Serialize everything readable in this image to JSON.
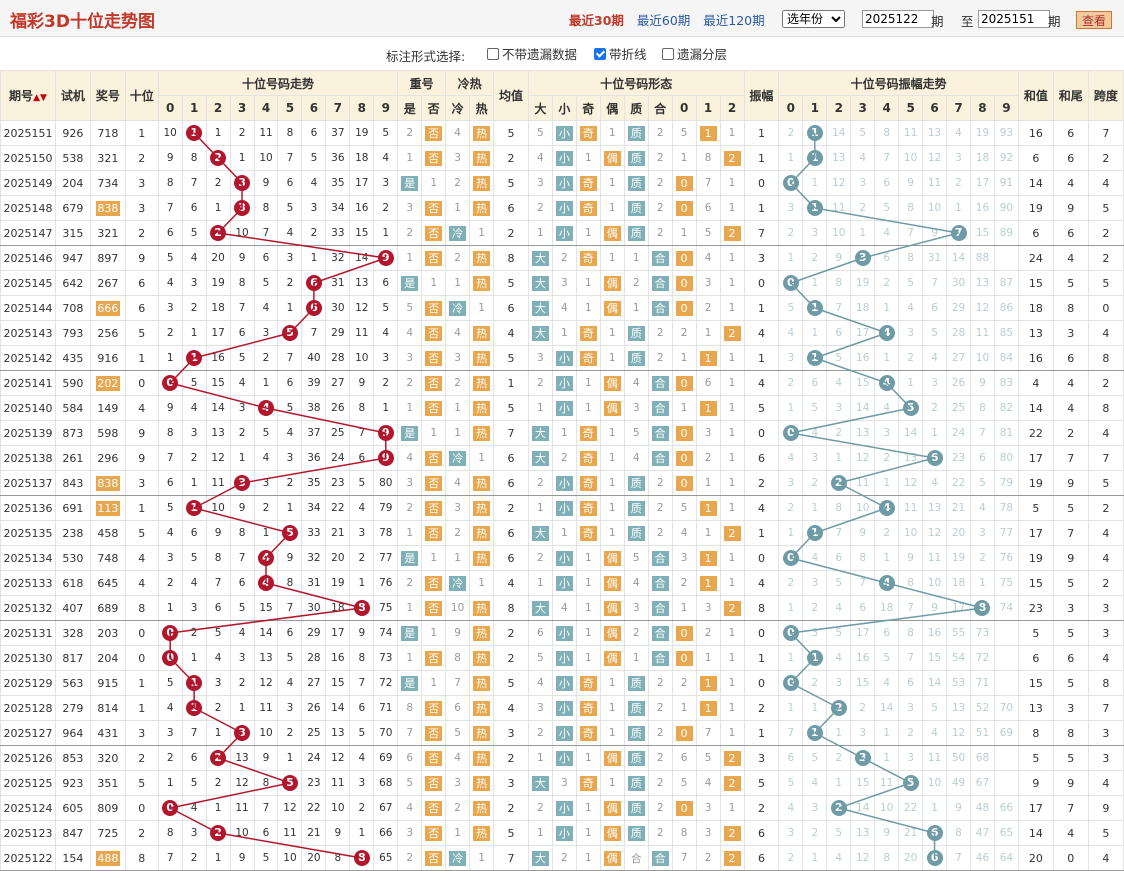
{
  "header": {
    "title": "福彩3D十位走势图",
    "periods": [
      "最近30期",
      "最近60期",
      "最近120期"
    ],
    "year_select": "选年份",
    "from": "2025122",
    "qi": "期",
    "to_label": "至",
    "to": "2025151",
    "view_button": "查看"
  },
  "options": {
    "label": "标注形式选择:",
    "items": [
      {
        "label": "不带遗漏数据",
        "checked": false
      },
      {
        "label": "带折线",
        "checked": true
      },
      {
        "label": "遗漏分层",
        "checked": false
      }
    ]
  },
  "columns": {
    "period": "期号",
    "trial": "试机",
    "prize": "奖号",
    "ten": "十位",
    "trend": "十位号码走势",
    "repeat": "重号",
    "coldhot": "冷热",
    "avg": "均值",
    "form": "十位号码形态",
    "amp": "振幅",
    "amp_trend": "十位号码振幅走势",
    "sum": "和值",
    "tail": "和尾",
    "span": "跨度"
  },
  "sub_columns": {
    "digits": [
      "0",
      "1",
      "2",
      "3",
      "4",
      "5",
      "6",
      "7",
      "8",
      "9"
    ],
    "repeat": [
      "是",
      "否"
    ],
    "coldhot": [
      "冷",
      "热"
    ],
    "form": [
      "大",
      "小",
      "奇",
      "偶",
      "质",
      "合",
      "0",
      "1",
      "2"
    ]
  },
  "colors": {
    "red_ball": "#b2162d",
    "teal_ball": "#6e9ba6",
    "orange": "#e8a74e",
    "teal_box": "#7fb0b8"
  },
  "rows": [
    {
      "p": "2025151",
      "t": "926",
      "j": "718",
      "s": 1,
      "m": [
        "10",
        "",
        "1",
        "2",
        "11",
        "8",
        "6",
        "37",
        "19",
        "5"
      ],
      "rep": "2",
      "co": "4",
      "a": "5",
      "big": "5",
      "oe": "奇",
      "pr": "质",
      "r": "1",
      "r0": "5",
      "r1": "2",
      "am": "1",
      "amiss": [
        "2",
        "",
        "14",
        "5",
        "8",
        "11",
        "13",
        "4",
        "19",
        "93"
      ],
      "sum": "16",
      "tail": "6",
      "span": "7"
    },
    {
      "p": "2025150",
      "t": "538",
      "j": "321",
      "s": 2,
      "m": [
        "9",
        "8",
        "",
        "1",
        "10",
        "7",
        "5",
        "36",
        "18",
        "4"
      ],
      "rep": "1",
      "co": "3",
      "a": "2",
      "big": "4",
      "oe": "偶",
      "pr": "质",
      "r": "2",
      "r0": "1",
      "r1": "8",
      "am": "1",
      "amiss": [
        "1",
        "",
        "13",
        "4",
        "7",
        "10",
        "12",
        "3",
        "18",
        "92"
      ],
      "sum": "6",
      "tail": "6",
      "span": "2"
    },
    {
      "p": "2025149",
      "t": "204",
      "j": "734",
      "s": 3,
      "m": [
        "8",
        "7",
        "2",
        "",
        "9",
        "6",
        "4",
        "35",
        "17",
        "3"
      ],
      "rep": "是",
      "co": "2",
      "a": "5",
      "big": "3",
      "oe": "奇",
      "pr": "质",
      "r": "0",
      "r0": "",
      "r1": "7",
      "am": "0",
      "amiss": [
        "",
        "1",
        "12",
        "3",
        "6",
        "9",
        "11",
        "2",
        "17",
        "91"
      ],
      "sum": "14",
      "tail": "4",
      "span": "4"
    },
    {
      "p": "2025148",
      "t": "679",
      "j": "838",
      "s": 3,
      "m": [
        "7",
        "6",
        "1",
        "",
        "8",
        "5",
        "3",
        "34",
        "16",
        "2"
      ],
      "rep": "3",
      "co": "1",
      "a": "6",
      "big": "2",
      "oe": "奇",
      "pr": "质",
      "r": "0",
      "r0": "",
      "r1": "6",
      "am": "1",
      "amiss": [
        "3",
        "",
        "11",
        "2",
        "5",
        "8",
        "10",
        "1",
        "16",
        "90"
      ],
      "sum": "19",
      "tail": "9",
      "span": "5"
    },
    {
      "p": "2025147",
      "t": "315",
      "j": "321",
      "s": 2,
      "m": [
        "6",
        "5",
        "",
        "10",
        "7",
        "4",
        "2",
        "33",
        "15",
        "1"
      ],
      "rep": "2",
      "co": "冷",
      "a": "2",
      "big": "1",
      "oe": "偶",
      "pr": "质",
      "r": "2",
      "r0": "1",
      "r1": "5",
      "am": "7",
      "amiss": [
        "2",
        "3",
        "10",
        "1",
        "4",
        "7",
        "9",
        "",
        "15",
        "89"
      ],
      "sum": "6",
      "tail": "6",
      "span": "2"
    },
    {
      "p": "2025146",
      "t": "947",
      "j": "897",
      "s": 9,
      "m": [
        "5",
        "4",
        "20",
        "9",
        "6",
        "3",
        "1",
        "32",
        "14",
        ""
      ],
      "rep": "1",
      "co": "2",
      "a": "8",
      "big": "大",
      "oe": "奇",
      "pr": "1",
      "r": "0",
      "r0": "",
      "r1": "4",
      "am": "3",
      "amiss": [
        "1",
        "2",
        "9",
        "",
        "6",
        "8",
        "31",
        "14",
        "88",
        ""
      ],
      "sum": "24",
      "tail": "4",
      "span": "2"
    },
    {
      "p": "2025145",
      "t": "642",
      "j": "267",
      "s": 6,
      "m": [
        "4",
        "3",
        "19",
        "8",
        "5",
        "2",
        "",
        "31",
        "13",
        "6"
      ],
      "rep": "是",
      "co": "1",
      "a": "5",
      "big": "大",
      "oe": "偶",
      "pr": "2",
      "r": "0",
      "r0": "",
      "r1": "3",
      "am": "0",
      "amiss": [
        "",
        "1",
        "8",
        "19",
        "2",
        "5",
        "7",
        "30",
        "13",
        "87"
      ],
      "sum": "15",
      "tail": "5",
      "span": "5"
    },
    {
      "p": "2025144",
      "t": "708",
      "j": "666",
      "s": 6,
      "m": [
        "3",
        "2",
        "18",
        "7",
        "4",
        "1",
        "",
        "30",
        "12",
        "5"
      ],
      "rep": "5",
      "co": "冷",
      "a": "6",
      "big": "大",
      "oe": "偶",
      "pr": "1",
      "r": "0",
      "r0": "",
      "r1": "2",
      "am": "1",
      "amiss": [
        "5",
        "",
        "7",
        "18",
        "1",
        "4",
        "6",
        "29",
        "12",
        "86"
      ],
      "sum": "18",
      "tail": "8",
      "span": "0"
    },
    {
      "p": "2025143",
      "t": "793",
      "j": "256",
      "s": 5,
      "m": [
        "2",
        "1",
        "17",
        "6",
        "3",
        "",
        "7",
        "29",
        "11",
        "4"
      ],
      "rep": "4",
      "co": "4",
      "a": "4",
      "big": "大",
      "oe": "奇",
      "pr": "质",
      "r": "2",
      "r0": "2",
      "r1": "1",
      "am": "4",
      "amiss": [
        "4",
        "1",
        "6",
        "17",
        "",
        "3",
        "5",
        "28",
        "11",
        "85"
      ],
      "sum": "13",
      "tail": "3",
      "span": "4"
    },
    {
      "p": "2025142",
      "t": "435",
      "j": "916",
      "s": 1,
      "m": [
        "1",
        "",
        "16",
        "5",
        "2",
        "7",
        "40",
        "28",
        "10",
        "3"
      ],
      "rep": "3",
      "co": "3",
      "a": "5",
      "big": "3",
      "oe": "奇",
      "pr": "质",
      "r": "1",
      "r0": "1",
      "r1": "",
      "am": "1",
      "amiss": [
        "3",
        "",
        "5",
        "16",
        "1",
        "2",
        "4",
        "27",
        "10",
        "84"
      ],
      "sum": "16",
      "tail": "6",
      "span": "8"
    },
    {
      "p": "2025141",
      "t": "590",
      "j": "202",
      "s": 0,
      "m": [
        "",
        "5",
        "15",
        "4",
        "1",
        "6",
        "39",
        "27",
        "9",
        "2"
      ],
      "rep": "2",
      "co": "2",
      "a": "1",
      "big": "2",
      "oe": "偶",
      "pr": "4",
      "r": "0",
      "r0": "",
      "r1": "6",
      "am": "4",
      "amiss": [
        "2",
        "6",
        "4",
        "15",
        "",
        "1",
        "3",
        "26",
        "9",
        "83"
      ],
      "sum": "4",
      "tail": "4",
      "span": "2"
    },
    {
      "p": "2025140",
      "t": "584",
      "j": "149",
      "s": 4,
      "m": [
        "9",
        "4",
        "14",
        "3",
        "",
        "5",
        "38",
        "26",
        "8",
        "1"
      ],
      "rep": "1",
      "co": "1",
      "a": "5",
      "big": "1",
      "oe": "偶",
      "pr": "3",
      "r": "1",
      "r0": "1",
      "r1": "",
      "am": "5",
      "amiss": [
        "1",
        "5",
        "3",
        "14",
        "4",
        "",
        "2",
        "25",
        "8",
        "82"
      ],
      "sum": "14",
      "tail": "4",
      "span": "8"
    },
    {
      "p": "2025139",
      "t": "873",
      "j": "598",
      "s": 9,
      "m": [
        "8",
        "3",
        "13",
        "2",
        "5",
        "4",
        "37",
        "25",
        "7",
        ""
      ],
      "rep": "是",
      "co": "1",
      "a": "7",
      "big": "大",
      "oe": "奇",
      "pr": "5",
      "r": "0",
      "r0": "",
      "r1": "3",
      "am": "0",
      "amiss": [
        "",
        "4",
        "2",
        "13",
        "3",
        "14",
        "1",
        "24",
        "7",
        "81"
      ],
      "sum": "22",
      "tail": "2",
      "span": "4"
    },
    {
      "p": "2025138",
      "t": "261",
      "j": "296",
      "s": 9,
      "m": [
        "7",
        "2",
        "12",
        "1",
        "4",
        "3",
        "36",
        "24",
        "6",
        ""
      ],
      "rep": "4",
      "co": "冷",
      "a": "6",
      "big": "大",
      "oe": "奇",
      "pr": "4",
      "r": "0",
      "r0": "",
      "r1": "2",
      "am": "6",
      "amiss": [
        "4",
        "3",
        "1",
        "12",
        "2",
        "13",
        "",
        "23",
        "6",
        "80"
      ],
      "sum": "17",
      "tail": "7",
      "span": "7"
    },
    {
      "p": "2025137",
      "t": "843",
      "j": "838",
      "s": 3,
      "m": [
        "6",
        "1",
        "11",
        "",
        "3",
        "2",
        "35",
        "23",
        "5",
        "80"
      ],
      "rep": "3",
      "co": "4",
      "a": "6",
      "big": "2",
      "oe": "奇",
      "pr": "质",
      "r": "0",
      "r0": "",
      "r1": "1",
      "am": "2",
      "amiss": [
        "3",
        "2",
        "",
        "11",
        "1",
        "12",
        "4",
        "22",
        "5",
        "79"
      ],
      "sum": "19",
      "tail": "9",
      "span": "5"
    },
    {
      "p": "2025136",
      "t": "691",
      "j": "113",
      "s": 1,
      "m": [
        "5",
        "",
        "10",
        "9",
        "2",
        "1",
        "34",
        "22",
        "4",
        "79"
      ],
      "rep": "2",
      "co": "3",
      "a": "2",
      "big": "1",
      "oe": "奇",
      "pr": "质",
      "r": "1",
      "r0": "5",
      "r1": "",
      "am": "4",
      "amiss": [
        "2",
        "1",
        "8",
        "10",
        "",
        "11",
        "13",
        "21",
        "4",
        "78"
      ],
      "sum": "5",
      "tail": "5",
      "span": "2"
    },
    {
      "p": "2025135",
      "t": "238",
      "j": "458",
      "s": 5,
      "m": [
        "4",
        "6",
        "9",
        "8",
        "1",
        "",
        "33",
        "21",
        "3",
        "78"
      ],
      "rep": "1",
      "co": "2",
      "a": "6",
      "big": "大",
      "oe": "奇",
      "pr": "质",
      "r": "2",
      "r0": "4",
      "r1": "1",
      "am": "1",
      "amiss": [
        "1",
        "",
        "7",
        "9",
        "2",
        "10",
        "12",
        "20",
        "3",
        "77"
      ],
      "sum": "17",
      "tail": "7",
      "span": "4"
    },
    {
      "p": "2025134",
      "t": "530",
      "j": "748",
      "s": 4,
      "m": [
        "3",
        "5",
        "8",
        "7",
        "",
        "9",
        "32",
        "20",
        "2",
        "77"
      ],
      "rep": "是",
      "co": "1",
      "a": "6",
      "big": "2",
      "oe": "偶",
      "pr": "5",
      "r": "1",
      "r0": "3",
      "r1": "",
      "am": "0",
      "amiss": [
        "",
        "4",
        "6",
        "8",
        "1",
        "9",
        "11",
        "19",
        "2",
        "76"
      ],
      "sum": "19",
      "tail": "9",
      "span": "4"
    },
    {
      "p": "2025133",
      "t": "618",
      "j": "645",
      "s": 4,
      "m": [
        "2",
        "4",
        "7",
        "6",
        "",
        "8",
        "31",
        "19",
        "1",
        "76"
      ],
      "rep": "2",
      "co": "冷",
      "a": "4",
      "big": "1",
      "oe": "偶",
      "pr": "4",
      "r": "1",
      "r0": "2",
      "r1": "",
      "am": "4",
      "amiss": [
        "2",
        "3",
        "5",
        "7",
        "",
        "8",
        "10",
        "18",
        "1",
        "75"
      ],
      "sum": "15",
      "tail": "5",
      "span": "2"
    },
    {
      "p": "2025132",
      "t": "407",
      "j": "689",
      "s": 8,
      "m": [
        "1",
        "3",
        "6",
        "5",
        "15",
        "7",
        "30",
        "18",
        "",
        "75"
      ],
      "rep": "1",
      "co": "10",
      "a": "8",
      "big": "大",
      "oe": "偶",
      "pr": "3",
      "r": "2",
      "r0": "1",
      "r1": "3",
      "am": "8",
      "amiss": [
        "1",
        "2",
        "4",
        "6",
        "18",
        "7",
        "9",
        "17",
        "",
        "74"
      ],
      "sum": "23",
      "tail": "3",
      "span": "3"
    },
    {
      "p": "2025131",
      "t": "328",
      "j": "203",
      "s": 0,
      "m": [
        "",
        "2",
        "5",
        "4",
        "14",
        "6",
        "29",
        "17",
        "9",
        "74"
      ],
      "rep": "是",
      "co": "9",
      "a": "2",
      "big": "6",
      "oe": "偶",
      "pr": "2",
      "r": "0",
      "r0": "",
      "r1": "2",
      "am": "0",
      "amiss": [
        "",
        "3",
        "5",
        "17",
        "6",
        "8",
        "16",
        "55",
        "73",
        ""
      ],
      "sum": "5",
      "tail": "5",
      "span": "3"
    },
    {
      "p": "2025130",
      "t": "817",
      "j": "204",
      "s": 0,
      "m": [
        "",
        "1",
        "4",
        "3",
        "13",
        "5",
        "28",
        "16",
        "8",
        "73"
      ],
      "rep": "1",
      "co": "8",
      "a": "2",
      "big": "5",
      "oe": "偶",
      "pr": "1",
      "r": "0",
      "r0": "",
      "r1": "1",
      "am": "1",
      "amiss": [
        "1",
        "",
        "4",
        "16",
        "5",
        "7",
        "15",
        "54",
        "72",
        ""
      ],
      "sum": "6",
      "tail": "6",
      "span": "4"
    },
    {
      "p": "2025129",
      "t": "563",
      "j": "915",
      "s": 1,
      "m": [
        "5",
        "",
        "3",
        "2",
        "12",
        "4",
        "27",
        "15",
        "7",
        "72"
      ],
      "rep": "是",
      "co": "7",
      "a": "5",
      "big": "4",
      "oe": "奇",
      "pr": "质",
      "r": "1",
      "r0": "2",
      "r1": "",
      "am": "0",
      "amiss": [
        "",
        "2",
        "3",
        "15",
        "4",
        "6",
        "14",
        "53",
        "71",
        ""
      ],
      "sum": "15",
      "tail": "5",
      "span": "8"
    },
    {
      "p": "2025128",
      "t": "279",
      "j": "814",
      "s": 1,
      "m": [
        "4",
        "",
        "2",
        "1",
        "11",
        "3",
        "26",
        "14",
        "6",
        "71"
      ],
      "rep": "8",
      "co": "6",
      "a": "4",
      "big": "3",
      "oe": "奇",
      "pr": "质",
      "r": "1",
      "r0": "1",
      "r1": "",
      "am": "2",
      "amiss": [
        "1",
        "1",
        "",
        "2",
        "14",
        "3",
        "5",
        "13",
        "52",
        "70"
      ],
      "sum": "13",
      "tail": "3",
      "span": "7"
    },
    {
      "p": "2025127",
      "t": "964",
      "j": "431",
      "s": 3,
      "m": [
        "3",
        "7",
        "1",
        "",
        "10",
        "2",
        "25",
        "13",
        "5",
        "70"
      ],
      "rep": "7",
      "co": "5",
      "a": "3",
      "big": "2",
      "oe": "奇",
      "pr": "质",
      "r": "0",
      "r0": "",
      "r1": "7",
      "am": "1",
      "amiss": [
        "7",
        "",
        "1",
        "3",
        "1",
        "2",
        "4",
        "12",
        "51",
        "69"
      ],
      "sum": "8",
      "tail": "8",
      "span": "3"
    },
    {
      "p": "2025126",
      "t": "853",
      "j": "320",
      "s": 2,
      "m": [
        "2",
        "6",
        "",
        "13",
        "9",
        "1",
        "24",
        "12",
        "4",
        "69"
      ],
      "rep": "6",
      "co": "4",
      "a": "2",
      "big": "1",
      "oe": "偶",
      "pr": "质",
      "r": "2",
      "r0": "6",
      "r1": "5",
      "am": "3",
      "amiss": [
        "6",
        "5",
        "2",
        "",
        "1",
        "3",
        "11",
        "50",
        "68",
        ""
      ],
      "sum": "5",
      "tail": "5",
      "span": "3"
    },
    {
      "p": "2025125",
      "t": "923",
      "j": "351",
      "s": 5,
      "m": [
        "1",
        "5",
        "2",
        "12",
        "8",
        "",
        "23",
        "11",
        "3",
        "68"
      ],
      "rep": "5",
      "co": "3",
      "a": "3",
      "big": "大",
      "oe": "奇",
      "pr": "质",
      "r": "2",
      "r0": "5",
      "r1": "4",
      "am": "5",
      "amiss": [
        "5",
        "4",
        "1",
        "15",
        "11",
        "",
        "10",
        "49",
        "67",
        ""
      ],
      "sum": "9",
      "tail": "9",
      "span": "4"
    },
    {
      "p": "2025124",
      "t": "605",
      "j": "809",
      "s": 0,
      "m": [
        "",
        "4",
        "1",
        "11",
        "7",
        "12",
        "22",
        "10",
        "2",
        "67"
      ],
      "rep": "4",
      "co": "2",
      "a": "2",
      "big": "2",
      "oe": "偶",
      "pr": "质",
      "r": "0",
      "r0": "",
      "r1": "3",
      "am": "2",
      "amiss": [
        "4",
        "3",
        "",
        "14",
        "10",
        "22",
        "1",
        "9",
        "48",
        "66"
      ],
      "sum": "17",
      "tail": "7",
      "span": "9"
    },
    {
      "p": "2025123",
      "t": "847",
      "j": "725",
      "s": 2,
      "m": [
        "8",
        "3",
        "",
        "10",
        "6",
        "11",
        "21",
        "9",
        "1",
        "66"
      ],
      "rep": "3",
      "co": "1",
      "a": "5",
      "big": "1",
      "oe": "偶",
      "pr": "质",
      "r": "2",
      "r0": "8",
      "r1": "3",
      "am": "6",
      "amiss": [
        "3",
        "2",
        "5",
        "13",
        "9",
        "21",
        "",
        "8",
        "47",
        "65"
      ],
      "sum": "14",
      "tail": "4",
      "span": "5"
    },
    {
      "p": "2025122",
      "t": "154",
      "j": "488",
      "s": 8,
      "m": [
        "7",
        "2",
        "1",
        "9",
        "5",
        "10",
        "20",
        "8",
        "",
        "65"
      ],
      "rep": "2",
      "co": "冷",
      "a": "7",
      "big": "大",
      "oe": "偶",
      "pr": "合",
      "r": "2",
      "r0": "7",
      "r1": "2",
      "am": "6",
      "amiss": [
        "2",
        "1",
        "4",
        "12",
        "8",
        "20",
        "",
        "7",
        "46",
        "64"
      ],
      "sum": "20",
      "tail": "0",
      "span": "4"
    }
  ]
}
